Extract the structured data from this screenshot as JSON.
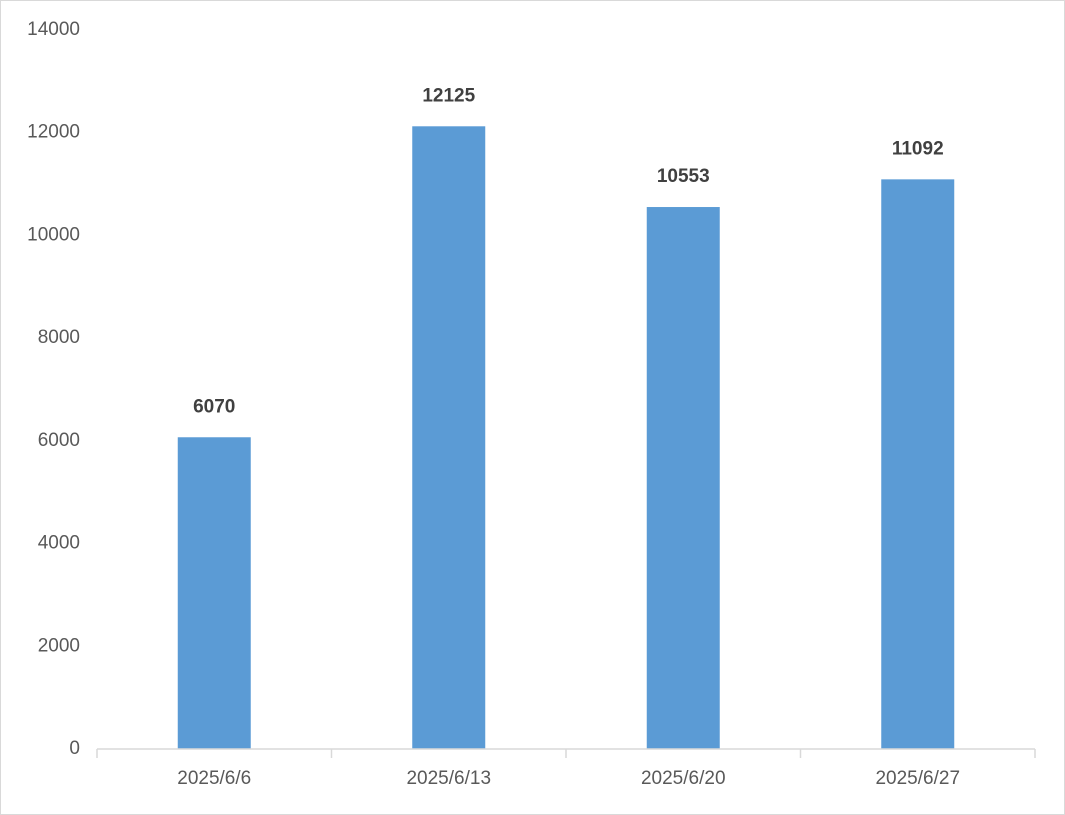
{
  "chart_data": {
    "type": "bar",
    "categories": [
      "2025/6/6",
      "2025/6/13",
      "2025/6/20",
      "2025/6/27"
    ],
    "values": [
      6070,
      12125,
      10553,
      11092
    ],
    "color": "#5b9bd5",
    "ylim": [
      0,
      14000
    ],
    "yticks": [
      0,
      2000,
      4000,
      6000,
      8000,
      10000,
      12000,
      14000
    ],
    "grid": false
  }
}
